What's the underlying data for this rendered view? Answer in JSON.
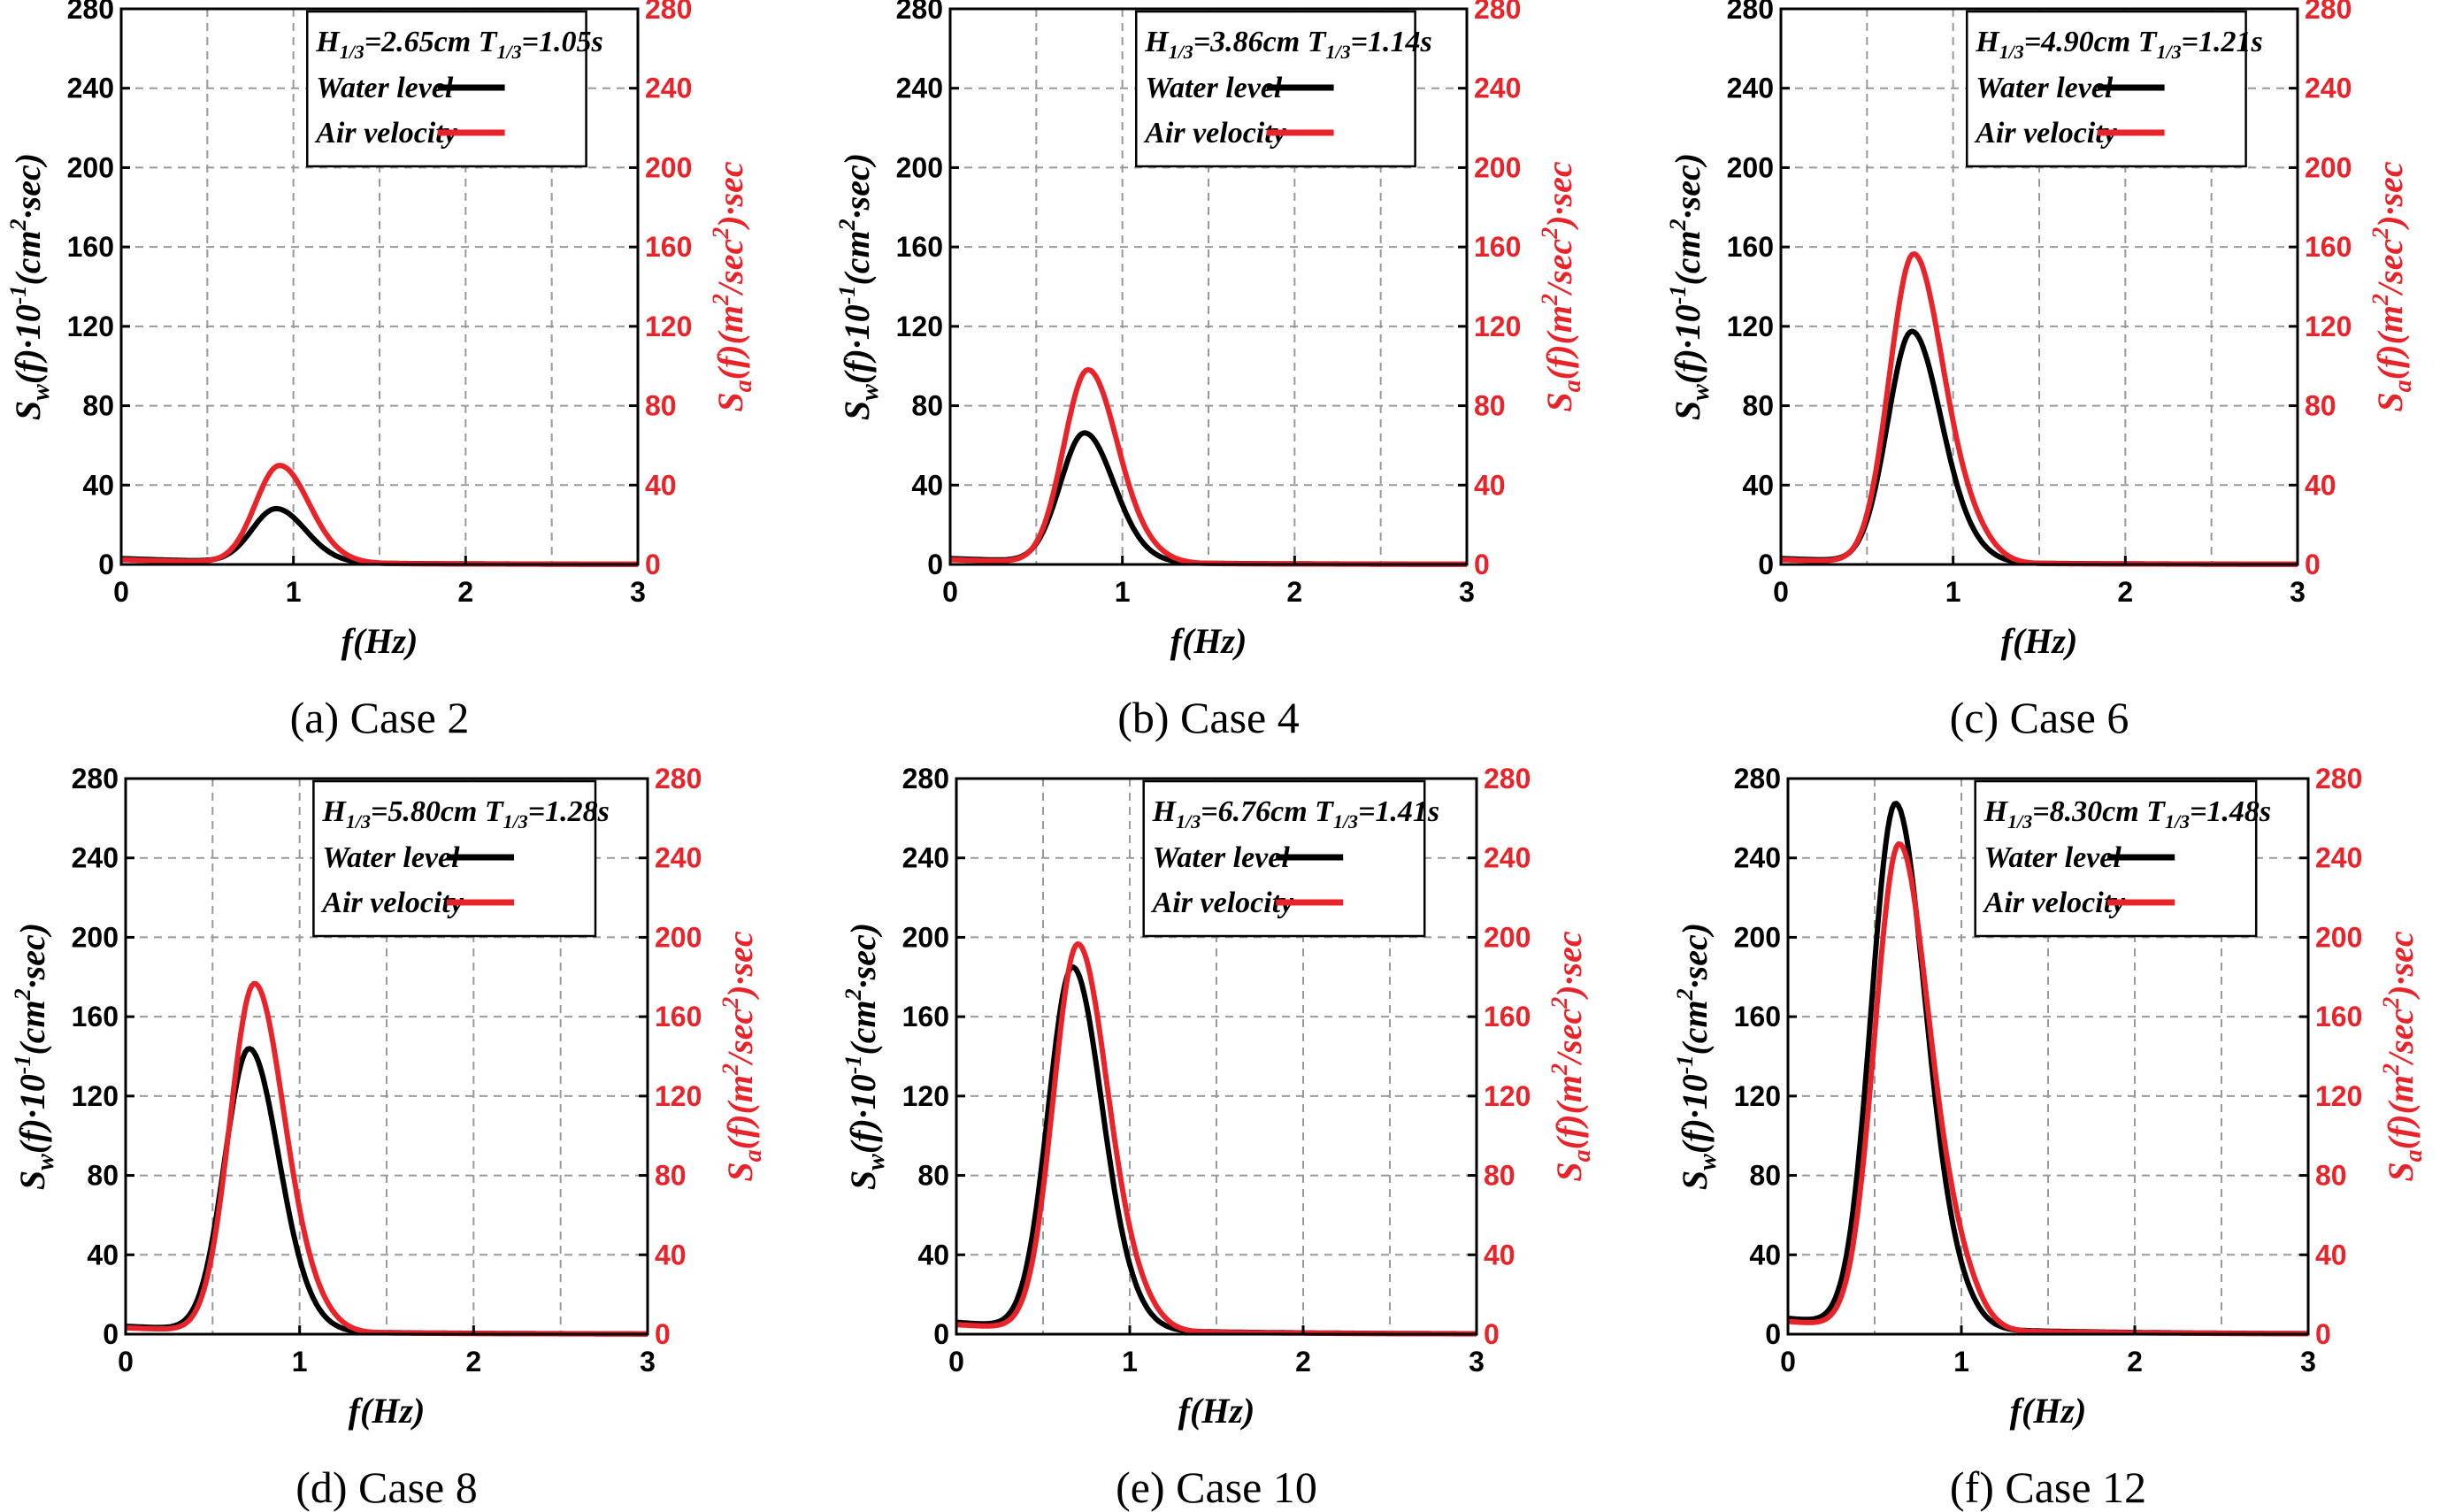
{
  "figure": {
    "xlabel": "f(Hz)",
    "ylabel_left": "S_w(f)·10^-1(cm^2·sec)",
    "ylabel_right": "S_a(f)(m^2/sec^2)·sec",
    "colors": {
      "water": "#000000",
      "air": "#e8242a",
      "grid": "#999999"
    }
  },
  "chart_data": [
    {
      "type": "line",
      "caption": "(a)  Case  2",
      "legend": {
        "H": "2.65cm",
        "T": "1.05s",
        "entries": [
          "Water level",
          "Air velocity"
        ]
      },
      "xlim": [
        0,
        3
      ],
      "ylim": [
        0,
        280
      ],
      "xticks": [
        0,
        1,
        2,
        3
      ],
      "yticks": [
        0,
        40,
        80,
        120,
        160,
        200,
        240,
        280
      ],
      "series": [
        {
          "name": "Water level",
          "peak_x": 0.9,
          "peak_y": 27
        },
        {
          "name": "Air velocity",
          "peak_x": 0.92,
          "peak_y": 49
        }
      ]
    },
    {
      "type": "line",
      "caption": "(b)  Case  4",
      "legend": {
        "H": "3.86cm",
        "T": "1.14s",
        "entries": [
          "Water level",
          "Air velocity"
        ]
      },
      "xlim": [
        0,
        3
      ],
      "ylim": [
        0,
        280
      ],
      "xticks": [
        0,
        1,
        2,
        3
      ],
      "yticks": [
        0,
        40,
        80,
        120,
        160,
        200,
        240,
        280
      ],
      "series": [
        {
          "name": "Water level",
          "peak_x": 0.78,
          "peak_y": 65
        },
        {
          "name": "Air velocity",
          "peak_x": 0.8,
          "peak_y": 97
        }
      ]
    },
    {
      "type": "line",
      "caption": "(c)  Case  6",
      "legend": {
        "H": "4.90cm",
        "T": "1.21s",
        "entries": [
          "Water level",
          "Air velocity"
        ]
      },
      "xlim": [
        0,
        3
      ],
      "ylim": [
        0,
        280
      ],
      "xticks": [
        0,
        1,
        2,
        3
      ],
      "yticks": [
        0,
        40,
        80,
        120,
        160,
        200,
        240,
        280
      ],
      "series": [
        {
          "name": "Water level",
          "peak_x": 0.76,
          "peak_y": 116
        },
        {
          "name": "Air velocity",
          "peak_x": 0.77,
          "peak_y": 155
        }
      ]
    },
    {
      "type": "line",
      "caption": "(d)  Case  8",
      "legend": {
        "H": "5.80cm",
        "T": "1.28s",
        "entries": [
          "Water level",
          "Air velocity"
        ]
      },
      "xlim": [
        0,
        3
      ],
      "ylim": [
        0,
        280
      ],
      "xticks": [
        0,
        1,
        2,
        3
      ],
      "yticks": [
        0,
        40,
        80,
        120,
        160,
        200,
        240,
        280
      ],
      "series": [
        {
          "name": "Water level",
          "peak_x": 0.71,
          "peak_y": 142
        },
        {
          "name": "Air velocity",
          "peak_x": 0.74,
          "peak_y": 175
        }
      ]
    },
    {
      "type": "line",
      "caption": "(e)  Case  10",
      "legend": {
        "H": "6.76cm",
        "T": "1.41s",
        "entries": [
          "Water level",
          "Air velocity"
        ]
      },
      "xlim": [
        0,
        3
      ],
      "ylim": [
        0,
        280
      ],
      "xticks": [
        0,
        1,
        2,
        3
      ],
      "yticks": [
        0,
        40,
        80,
        120,
        160,
        200,
        240,
        280
      ],
      "series": [
        {
          "name": "Water level",
          "peak_x": 0.67,
          "peak_y": 182
        },
        {
          "name": "Air velocity",
          "peak_x": 0.7,
          "peak_y": 194
        }
      ]
    },
    {
      "type": "line",
      "caption": "(f)  Case  12",
      "legend": {
        "H": "8.30cm",
        "T": "1.48s",
        "entries": [
          "Water level",
          "Air velocity"
        ]
      },
      "xlim": [
        0,
        3
      ],
      "ylim": [
        0,
        280
      ],
      "xticks": [
        0,
        1,
        2,
        3
      ],
      "yticks": [
        0,
        40,
        80,
        120,
        160,
        200,
        240,
        280
      ],
      "series": [
        {
          "name": "Water level",
          "peak_x": 0.62,
          "peak_y": 263
        },
        {
          "name": "Air velocity",
          "peak_x": 0.64,
          "peak_y": 243
        }
      ]
    }
  ]
}
